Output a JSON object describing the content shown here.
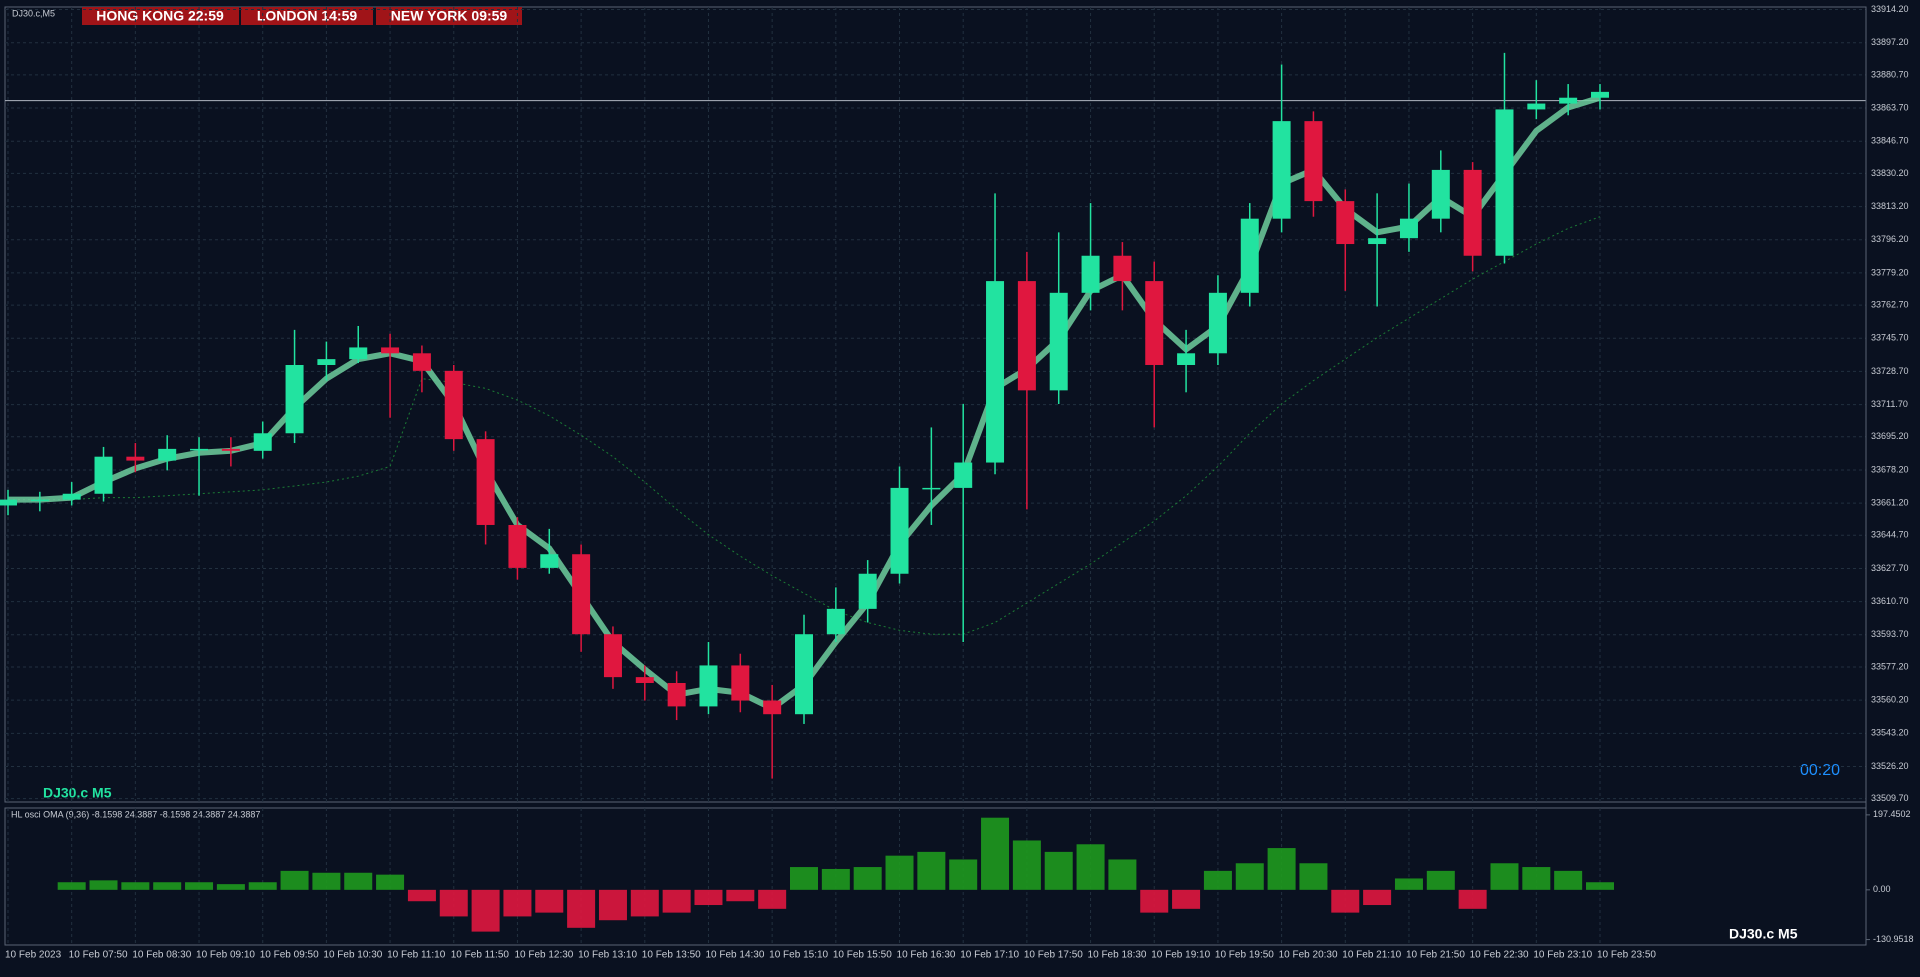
{
  "chart_data": [
    {
      "type": "candlestick",
      "symbol": "DJ30.c,M5",
      "sessions": [
        "HONG KONG 22:59",
        "LONDON 14:59",
        "NEW YORK 09:59"
      ],
      "watermark": "DJ30.c M5",
      "countdown": "00:20",
      "categories": [
        "10 Feb 2023",
        null,
        "10 Feb 07:50",
        null,
        "10 Feb 08:30",
        null,
        "10 Feb 09:10",
        null,
        "10 Feb 09:50",
        null,
        "10 Feb 10:30",
        null,
        "10 Feb 11:10",
        null,
        "10 Feb 11:50",
        null,
        "10 Feb 12:30",
        null,
        "10 Feb 13:10",
        null,
        "10 Feb 13:50",
        null,
        "10 Feb 14:30",
        null,
        "10 Feb 15:10",
        null,
        "10 Feb 15:50",
        null,
        "10 Feb 16:30",
        null,
        "10 Feb 17:10",
        null,
        "10 Feb 17:50",
        null,
        "10 Feb 18:30",
        null,
        "10 Feb 19:10",
        null,
        "10 Feb 19:50",
        null,
        "10 Feb 20:30",
        null,
        "10 Feb 21:10",
        null,
        "10 Feb 21:50",
        null,
        "10 Feb 22:30",
        null,
        "10 Feb 23:10",
        null,
        "10 Feb 23:50"
      ],
      "open": [
        33660,
        33663,
        33663,
        33666,
        33685,
        33683,
        33689,
        33689,
        33688,
        33697,
        33732,
        33735,
        33741,
        33738,
        33729,
        33694,
        33650,
        33628,
        33635,
        33594,
        33572,
        33569,
        33557,
        33578,
        33560,
        33553,
        33594,
        33607,
        33625,
        33669,
        33669,
        33682,
        33775,
        33719,
        33769,
        33788,
        33775,
        33732,
        33738,
        33769,
        33807,
        33857,
        33816,
        33794,
        33797,
        33807,
        33832,
        33788,
        33863,
        33866,
        33869
      ],
      "high": [
        33668,
        33667,
        33672,
        33690,
        33692,
        33696,
        33695,
        33695,
        33703,
        33750,
        33744,
        33752,
        33748,
        33742,
        33732,
        33698,
        33654,
        33648,
        33640,
        33598,
        33578,
        33575,
        33590,
        33584,
        33568,
        33604,
        33618,
        33632,
        33680,
        33700,
        33712,
        33820,
        33790,
        33800,
        33815,
        33795,
        33785,
        33750,
        33778,
        33815,
        33886,
        33862,
        33822,
        33820,
        33825,
        33842,
        33836,
        33892,
        33878,
        33876,
        33876
      ],
      "low": [
        33655,
        33657,
        33660,
        33662,
        33677,
        33678,
        33665,
        33680,
        33684,
        33692,
        33724,
        33733,
        33705,
        33718,
        33688,
        33640,
        33622,
        33625,
        33585,
        33566,
        33560,
        33550,
        33553,
        33554,
        33520,
        33548,
        33590,
        33600,
        33620,
        33650,
        33590,
        33676,
        33658,
        33712,
        33760,
        33760,
        33700,
        33718,
        33732,
        33762,
        33800,
        33808,
        33770,
        33762,
        33790,
        33800,
        33780,
        33784,
        33858,
        33860,
        33863
      ],
      "close": [
        33663,
        33663,
        33666,
        33685,
        33683,
        33689,
        33689,
        33688,
        33697,
        33732,
        33735,
        33741,
        33738,
        33729,
        33694,
        33650,
        33628,
        33635,
        33594,
        33572,
        33569,
        33557,
        33578,
        33560,
        33553,
        33594,
        33607,
        33625,
        33669,
        33669,
        33682,
        33775,
        33719,
        33769,
        33788,
        33775,
        33732,
        33738,
        33769,
        33807,
        33857,
        33816,
        33794,
        33797,
        33807,
        33832,
        33788,
        33863,
        33866,
        33869,
        33872
      ],
      "oma": [
        33663,
        33663,
        33664,
        33672,
        33679,
        33684,
        33687,
        33688,
        33692,
        33710,
        33725,
        33735,
        33738,
        33734,
        33712,
        33678,
        33650,
        33638,
        33614,
        33590,
        33576,
        33563,
        33566,
        33564,
        33556,
        33568,
        33590,
        33610,
        33640,
        33660,
        33676,
        33720,
        33730,
        33745,
        33770,
        33778,
        33755,
        33740,
        33752,
        33782,
        33825,
        33832,
        33812,
        33800,
        33803,
        33818,
        33808,
        33830,
        33852,
        33864,
        33869
      ],
      "ma": [
        33663,
        33663,
        33663,
        33664,
        33664,
        33665,
        33666,
        33667,
        33668,
        33670,
        33672,
        33675,
        33680,
        33725,
        33723,
        33720,
        33714,
        33706,
        33696,
        33685,
        33672,
        33658,
        33645,
        33634,
        33624,
        33615,
        33606,
        33600,
        33596,
        33594,
        33594,
        33600,
        33610,
        33620,
        33630,
        33641,
        33652,
        33665,
        33680,
        33697,
        33712,
        33724,
        33735,
        33746,
        33756,
        33766,
        33776,
        33785,
        33794,
        33802,
        33808
      ],
      "price_line": 33867.5,
      "up_color": "#22e3a0",
      "down_color": "#e0173f",
      "oma_color": "#6fcf9f",
      "ma_color": "#1f8f3a",
      "ylim": [
        33508,
        33915.5
      ],
      "yticks": [
        {
          "value": 33914.2,
          "label": "33914.20"
        },
        {
          "value": 33897.2,
          "label": "33897.20"
        },
        {
          "value": 33880.7,
          "label": "33880.70"
        },
        {
          "value": 33863.7,
          "label": "33863.70"
        },
        {
          "value": 33846.7,
          "label": "33846.70"
        },
        {
          "value": 33830.2,
          "label": "33830.20"
        },
        {
          "value": 33813.2,
          "label": "33813.20"
        },
        {
          "value": 33796.2,
          "label": "33796.20"
        },
        {
          "value": 33779.2,
          "label": "33779.20"
        },
        {
          "value": 33762.7,
          "label": "33762.70"
        },
        {
          "value": 33745.7,
          "label": "33745.70"
        },
        {
          "value": 33728.7,
          "label": "33728.70"
        },
        {
          "value": 33711.7,
          "label": "33711.70"
        },
        {
          "value": 33695.2,
          "label": "33695.20"
        },
        {
          "value": 33678.2,
          "label": "33678.20"
        },
        {
          "value": 33661.2,
          "label": "33661.20"
        },
        {
          "value": 33644.7,
          "label": "33644.70"
        },
        {
          "value": 33627.7,
          "label": "33627.70"
        },
        {
          "value": 33610.7,
          "label": "33610.70"
        },
        {
          "value": 33593.7,
          "label": "33593.70"
        },
        {
          "value": 33577.2,
          "label": "33577.20"
        },
        {
          "value": 33560.2,
          "label": "33560.20"
        },
        {
          "value": 33543.2,
          "label": "33543.20"
        },
        {
          "value": 33526.2,
          "label": "33526.20"
        },
        {
          "value": 33509.7,
          "label": "33509.70"
        }
      ],
      "grid": true
    },
    {
      "type": "histogram",
      "title": "HL osci OMA (9,36) -8.1598 24.3887 -8.1598 24.3887 24.3887",
      "watermark": "DJ30.c M5",
      "values": [
        0,
        0,
        20,
        25,
        20,
        20,
        20,
        15,
        20,
        50,
        45,
        45,
        40,
        -30,
        -70,
        -110,
        -70,
        -60,
        -100,
        -80,
        -70,
        -60,
        -40,
        -30,
        -50,
        60,
        55,
        60,
        90,
        100,
        80,
        190,
        130,
        100,
        120,
        80,
        -60,
        -50,
        50,
        70,
        110,
        70,
        -60,
        -40,
        30,
        50,
        -50,
        70,
        60,
        50,
        20
      ],
      "up_color": "#1e9a1e",
      "down_color": "#e0173f",
      "ylim": [
        -140,
        205
      ],
      "yticks": [
        197.4502,
        {
          "value": 0,
          "label": "0.00"
        },
        -130.9518
      ]
    }
  ]
}
